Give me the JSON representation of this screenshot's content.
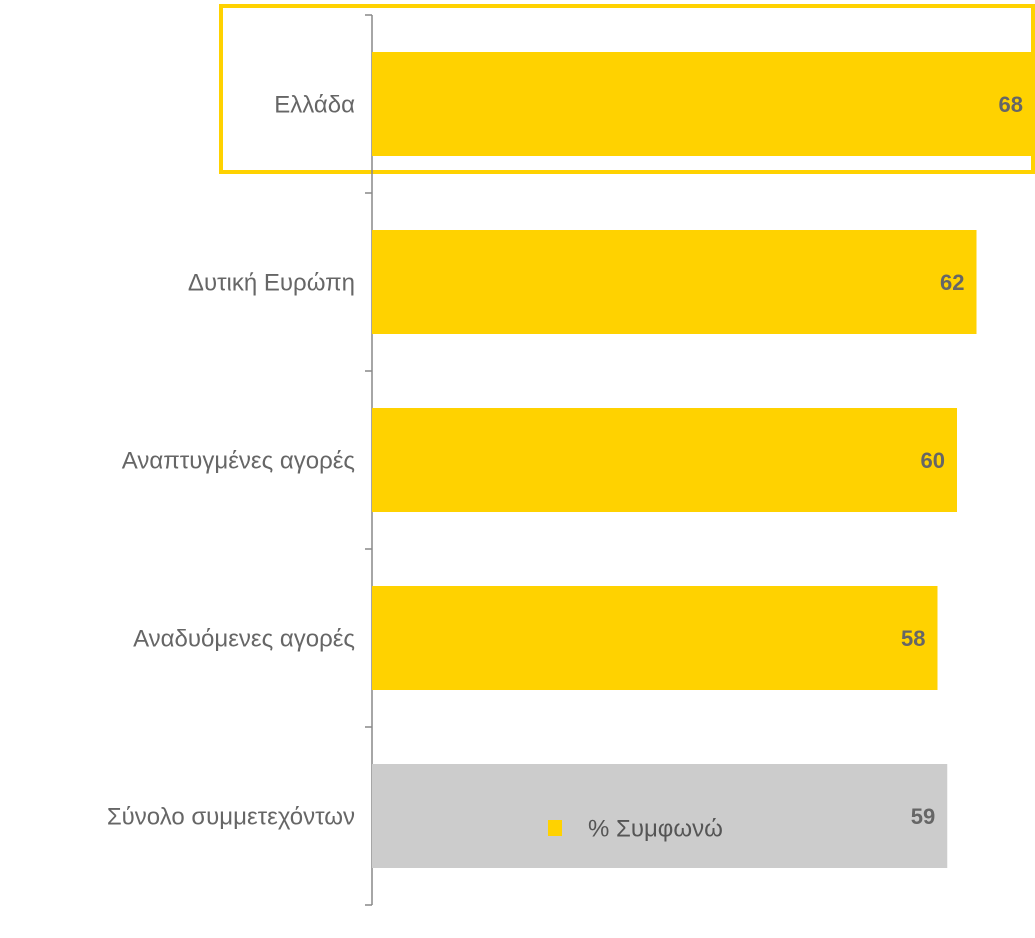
{
  "chart_data": {
    "type": "hbar",
    "categories": [
      "Ελλάδα",
      "Δυτική Ευρώπη",
      "Αναπτυγμένες αγορές",
      "Αναδυόμενες αγορές",
      "Σύνολο συμμετεχόντων"
    ],
    "series": [
      {
        "name": "% Συμφωνώ",
        "values": [
          68,
          62,
          60,
          58,
          59
        ],
        "colors": [
          "#ffd200",
          "#ffd200",
          "#ffd200",
          "#ffd200",
          "#cccccc"
        ]
      }
    ],
    "xlim": [
      0,
      68
    ]
  }
}
